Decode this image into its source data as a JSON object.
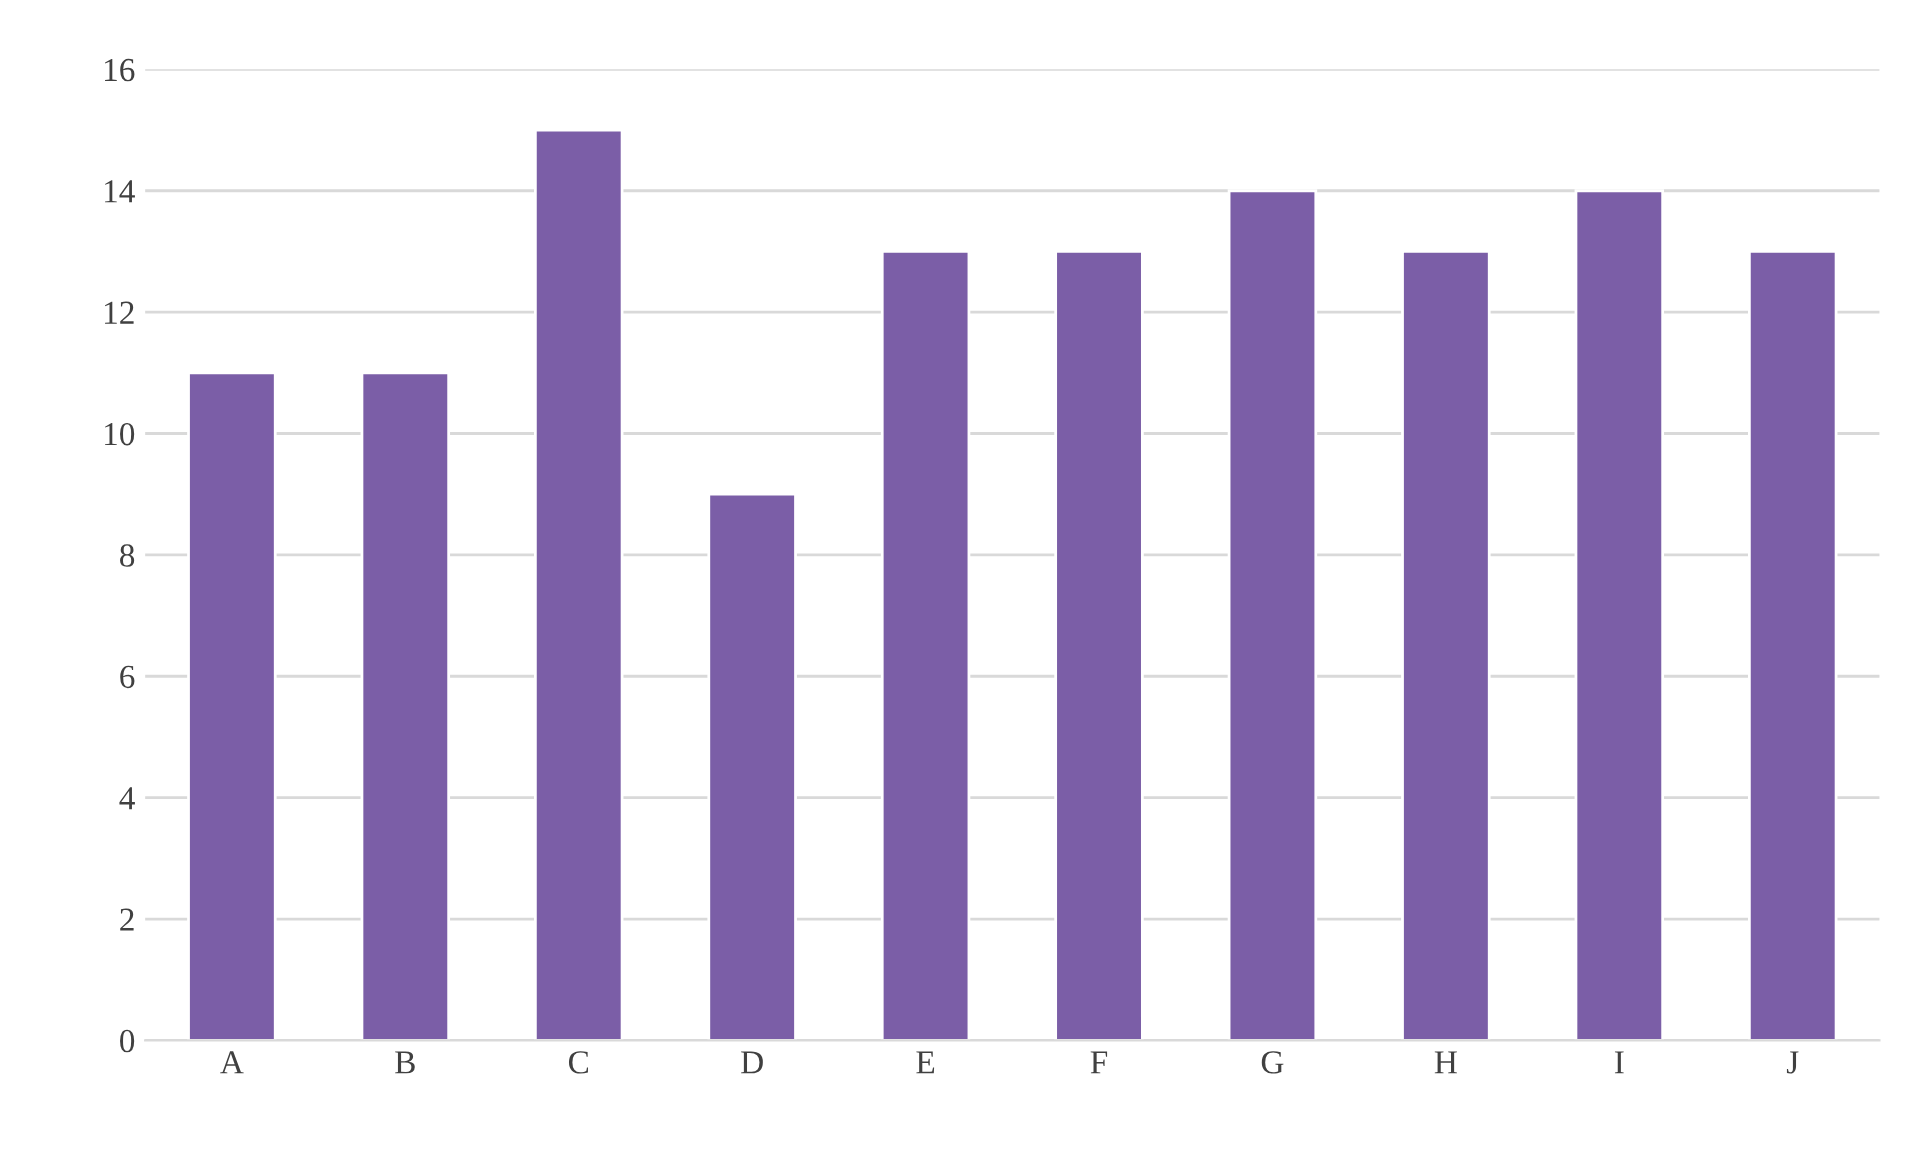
{
  "chart_data": {
    "type": "bar",
    "categories": [
      "A",
      "B",
      "C",
      "D",
      "E",
      "F",
      "G",
      "H",
      "I",
      "J"
    ],
    "values": [
      11,
      11,
      15,
      9,
      13,
      13,
      14,
      13,
      14,
      13
    ],
    "color": "#7b5ea7",
    "ylim": [
      0,
      16
    ],
    "yticks": [
      0,
      2,
      4,
      6,
      8,
      10,
      12,
      14,
      16
    ],
    "grid": "y",
    "legend": false
  }
}
